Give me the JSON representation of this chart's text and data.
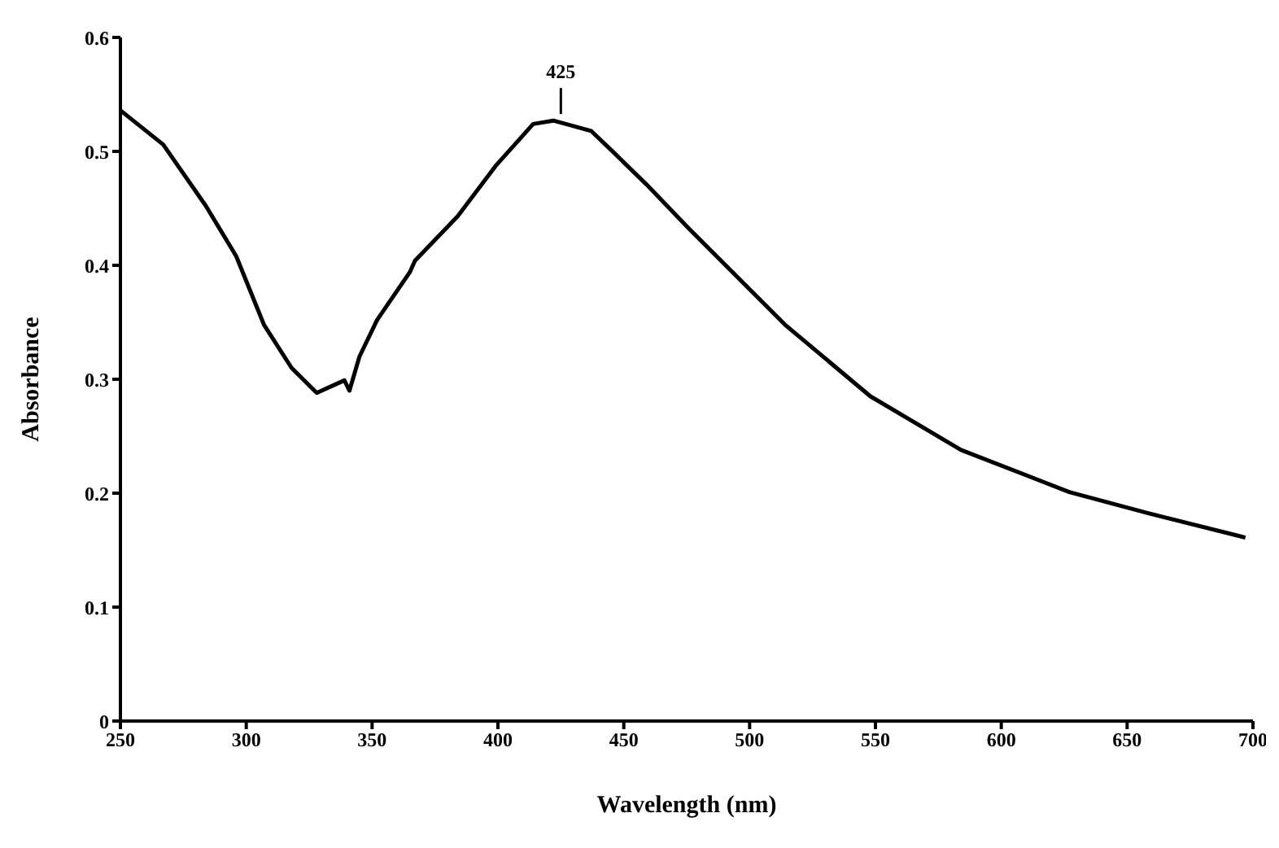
{
  "chart_data": {
    "type": "line",
    "xlabel": "Wavelength (nm)",
    "ylabel": "Absorbance",
    "xlim": [
      250,
      700
    ],
    "xticks": [
      250,
      300,
      350,
      400,
      450,
      500,
      550,
      600,
      650,
      700
    ],
    "ylim": [
      0,
      0.6
    ],
    "yticks": [
      0,
      0.1,
      0.2,
      0.3,
      0.4,
      0.5,
      0.6
    ],
    "grid": false,
    "legend": false,
    "marker": "none",
    "line_style": "solid",
    "annotations": [
      {
        "text": "425",
        "x": 425,
        "y": 0.527
      }
    ],
    "series": [
      {
        "color": "#000000",
        "x": [
          250,
          267,
          284,
          296,
          307,
          318,
          328,
          339,
          341,
          345,
          352,
          365,
          367,
          384,
          399,
          414,
          422,
          437,
          446,
          459,
          476,
          514,
          548,
          584,
          627,
          659,
          697
        ],
        "values": [
          0.536,
          0.506,
          0.452,
          0.408,
          0.348,
          0.31,
          0.288,
          0.299,
          0.29,
          0.32,
          0.352,
          0.394,
          0.404,
          0.443,
          0.487,
          0.524,
          0.527,
          0.518,
          0.499,
          0.471,
          0.432,
          0.348,
          0.285,
          0.238,
          0.201,
          0.182,
          0.161
        ]
      }
    ]
  }
}
